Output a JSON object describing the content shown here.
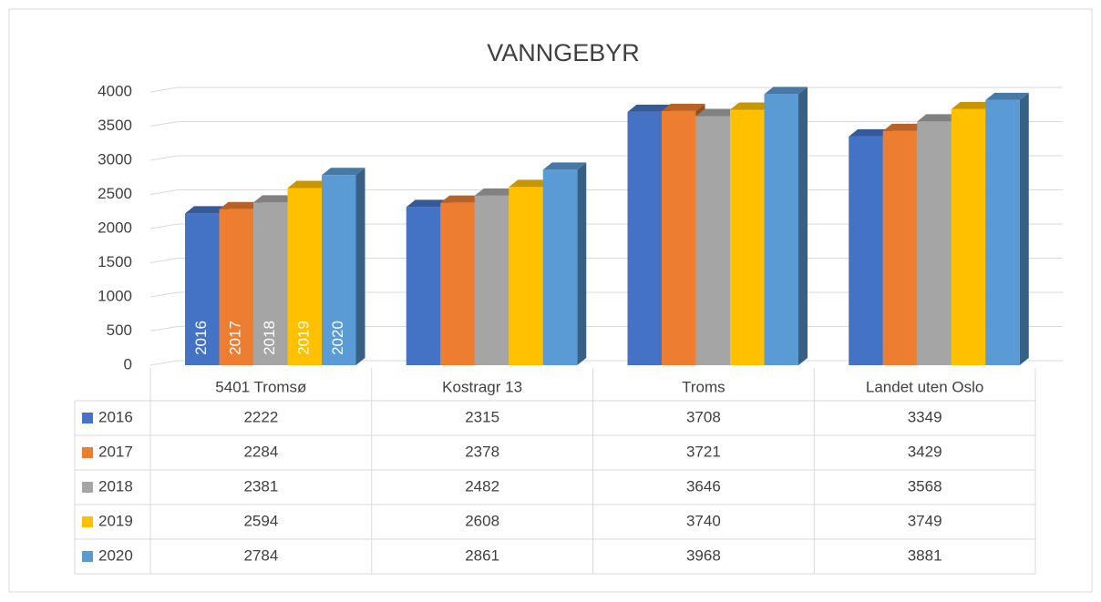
{
  "chart_data": {
    "type": "bar3d",
    "title": "VANNGEBYR",
    "categories": [
      "5401 Tromsø",
      "Kostragr 13",
      "Troms",
      "Landet uten Oslo"
    ],
    "series": [
      {
        "name": "2016",
        "color": "#4472c4",
        "values": [
          2222,
          2315,
          3708,
          3349
        ]
      },
      {
        "name": "2017",
        "color": "#ed7d31",
        "values": [
          2284,
          2378,
          3721,
          3429
        ]
      },
      {
        "name": "2018",
        "color": "#a5a5a5",
        "values": [
          2381,
          2482,
          3646,
          3568
        ]
      },
      {
        "name": "2019",
        "color": "#ffc000",
        "values": [
          2594,
          2608,
          3740,
          3749
        ]
      },
      {
        "name": "2020",
        "color": "#5b9bd5",
        "values": [
          2784,
          2861,
          3968,
          3881
        ]
      }
    ],
    "ylim": [
      0,
      4000
    ],
    "yticks": [
      0,
      500,
      1000,
      1500,
      2000,
      2500,
      3000,
      3500,
      4000
    ],
    "grid": true
  }
}
